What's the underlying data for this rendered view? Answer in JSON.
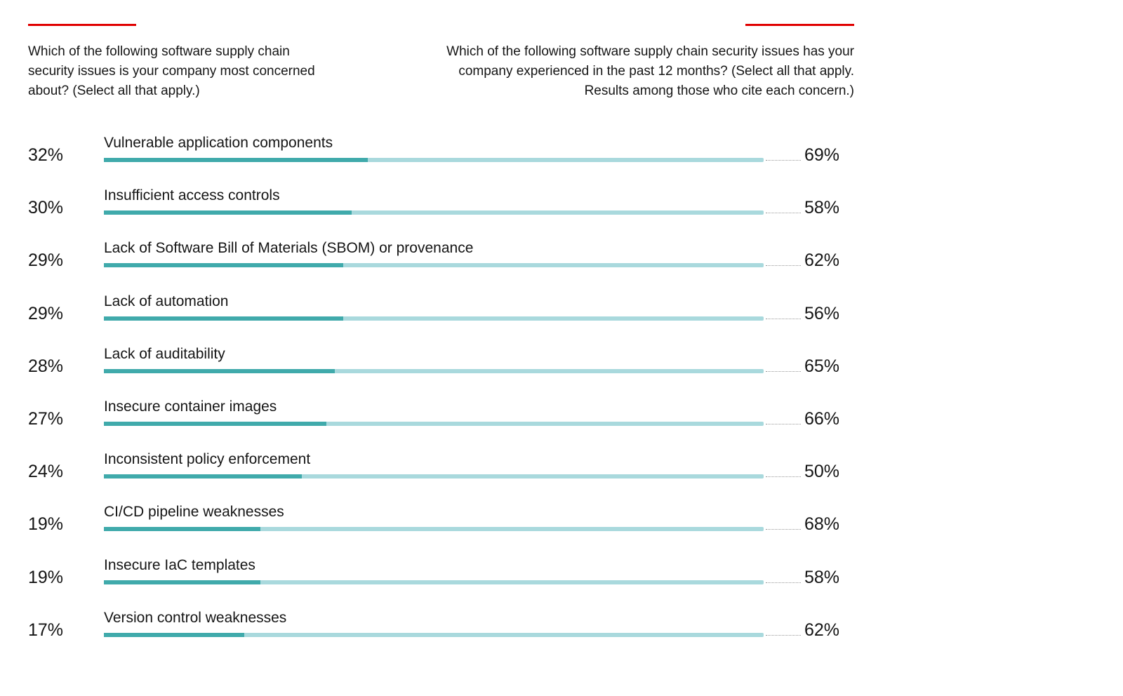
{
  "chart_data": {
    "type": "bar",
    "left_question": "Which of the following software supply chain security issues is your company most concerned about? (Select all that apply.)",
    "right_question": "Which of the following software supply chain security issues has your company experienced in the past 12 months? (Select all that apply. Results among those who cite each concern.)",
    "categories": [
      "Vulnerable application components",
      "Insufficient access controls",
      "Lack of Software Bill of Materials (SBOM) or provenance",
      "Lack of automation",
      "Lack of auditability",
      "Insecure container images",
      "Inconsistent policy enforcement",
      "CI/CD pipeline weaknesses",
      "Insecure IaC templates",
      "Version control weaknesses"
    ],
    "series": [
      {
        "color": "#40aaab",
        "values": [
          32,
          30,
          29,
          29,
          28,
          27,
          24,
          19,
          19,
          17
        ],
        "value_labels": [
          "32%",
          "30%",
          "29%",
          "29%",
          "28%",
          "27%",
          "24%",
          "19%",
          "19%",
          "17%"
        ]
      },
      {
        "color": "#a9d9dd",
        "values": [
          69,
          58,
          62,
          56,
          65,
          66,
          50,
          68,
          58,
          62
        ],
        "value_labels": [
          "69%",
          "58%",
          "62%",
          "56%",
          "65%",
          "66%",
          "50%",
          "68%",
          "58%",
          "62%"
        ]
      }
    ],
    "xlim": [
      0,
      80
    ]
  }
}
